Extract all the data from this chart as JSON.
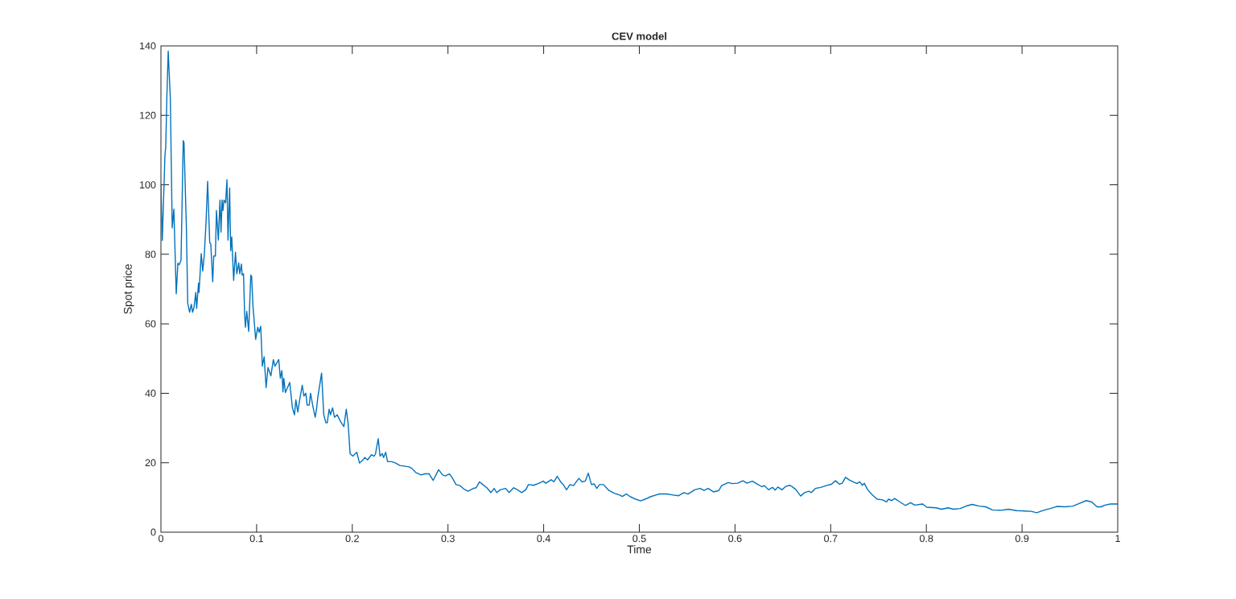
{
  "chart_data": {
    "type": "line",
    "title": "CEV model",
    "xlabel": "Time",
    "ylabel": "Spot price",
    "color": "#0072bd",
    "line_style": "solid",
    "marker": "none",
    "xlim": [
      0,
      1
    ],
    "ylim": [
      0,
      140
    ],
    "xticks": [
      0,
      0.1,
      0.2,
      0.3,
      0.4,
      0.5,
      0.6,
      0.7,
      0.8,
      0.9,
      1
    ],
    "yticks": [
      0,
      20,
      40,
      60,
      80,
      100,
      120,
      140
    ],
    "x": [
      0,
      0.0014,
      0.0042,
      0.005,
      0.0062,
      0.0076,
      0.0098,
      0.0118,
      0.0135,
      0.016,
      0.0177,
      0.0191,
      0.021,
      0.0233,
      0.0241,
      0.0266,
      0.028,
      0.03,
      0.0317,
      0.0331,
      0.0345,
      0.0364,
      0.0373,
      0.0393,
      0.0398,
      0.0421,
      0.0437,
      0.0454,
      0.0471,
      0.0488,
      0.051,
      0.0521,
      0.0541,
      0.0552,
      0.0569,
      0.058,
      0.06,
      0.0617,
      0.0628,
      0.0639,
      0.0648,
      0.0659,
      0.0676,
      0.069,
      0.0701,
      0.0718,
      0.0729,
      0.074,
      0.076,
      0.0779,
      0.0793,
      0.0813,
      0.0824,
      0.0841,
      0.0849,
      0.0863,
      0.0875,
      0.0883,
      0.0897,
      0.0917,
      0.0939,
      0.0948,
      0.0962,
      0.099,
      0.1012,
      0.1026,
      0.1043,
      0.106,
      0.1079,
      0.1099,
      0.1119,
      0.1149,
      0.1175,
      0.1191,
      0.1231,
      0.1248,
      0.1264,
      0.1275,
      0.1284,
      0.1301,
      0.1346,
      0.1374,
      0.1396,
      0.141,
      0.143,
      0.1455,
      0.1477,
      0.1494,
      0.1514,
      0.1528,
      0.155,
      0.1564,
      0.1584,
      0.1612,
      0.1626,
      0.164,
      0.1679,
      0.1702,
      0.1724,
      0.1738,
      0.1758,
      0.1772,
      0.1794,
      0.1814,
      0.1842,
      0.1876,
      0.1912,
      0.1937,
      0.1957,
      0.1977,
      0.2005,
      0.2047,
      0.2075,
      0.2117,
      0.213,
      0.2159,
      0.2201,
      0.2229,
      0.2243,
      0.2271,
      0.229,
      0.2313,
      0.2327,
      0.2349,
      0.2369,
      0.2411,
      0.2453,
      0.2495,
      0.2593,
      0.2621,
      0.2663,
      0.2719,
      0.2761,
      0.2803,
      0.2845,
      0.2902,
      0.2944,
      0.2972,
      0.3014,
      0.3042,
      0.3084,
      0.3126,
      0.3168,
      0.321,
      0.3266,
      0.3294,
      0.333,
      0.3364,
      0.3406,
      0.3448,
      0.3482,
      0.351,
      0.3546,
      0.3602,
      0.3639,
      0.3687,
      0.3715,
      0.3771,
      0.3813,
      0.3841,
      0.3897,
      0.3953,
      0.3995,
      0.4023,
      0.4079,
      0.4107,
      0.4142,
      0.4177,
      0.4205,
      0.4239,
      0.4275,
      0.4312,
      0.4368,
      0.4401,
      0.4435,
      0.4466,
      0.45,
      0.4528,
      0.4556,
      0.4584,
      0.4626,
      0.4682,
      0.4738,
      0.4794,
      0.4822,
      0.4864,
      0.4906,
      0.4962,
      0.5013,
      0.5061,
      0.5116,
      0.5172,
      0.5214,
      0.5284,
      0.5355,
      0.541,
      0.5467,
      0.5509,
      0.5579,
      0.5635,
      0.5677,
      0.5719,
      0.5775,
      0.5831,
      0.586,
      0.5929,
      0.5971,
      0.6028,
      0.6083,
      0.6125,
      0.6182,
      0.6224,
      0.628,
      0.6308,
      0.635,
      0.6392,
      0.642,
      0.6448,
      0.649,
      0.6532,
      0.6574,
      0.6602,
      0.6638,
      0.6686,
      0.6728,
      0.677,
      0.6798,
      0.684,
      0.6897,
      0.6953,
      0.7008,
      0.7051,
      0.7093,
      0.7121,
      0.7155,
      0.7191,
      0.7233,
      0.7275,
      0.7303,
      0.7331,
      0.7351,
      0.7387,
      0.7429,
      0.7485,
      0.7542,
      0.7584,
      0.7603,
      0.7639,
      0.7668,
      0.7724,
      0.778,
      0.7836,
      0.7878,
      0.7962,
      0.8004,
      0.8102,
      0.8158,
      0.8228,
      0.8284,
      0.8354,
      0.8425,
      0.848,
      0.8551,
      0.8621,
      0.8691,
      0.8775,
      0.8859,
      0.8943,
      0.9027,
      0.9097,
      0.9153,
      0.9224,
      0.9294,
      0.9363,
      0.9448,
      0.9532,
      0.9602,
      0.9672,
      0.9728,
      0.9784,
      0.9826,
      0.9868,
      0.9924,
      1
    ],
    "values": [
      100,
      84,
      108.5,
      110.8,
      125.4,
      138.5,
      125,
      87.6,
      93,
      68.6,
      77.4,
      77,
      78.3,
      112.7,
      112.2,
      87.6,
      65.9,
      63.3,
      65.6,
      63.3,
      64.7,
      69,
      64.4,
      71.7,
      69,
      80.2,
      75.2,
      80.2,
      89.1,
      101,
      83.3,
      83,
      72.1,
      79.5,
      79.5,
      92.6,
      84.1,
      95.6,
      86.4,
      95.6,
      92.6,
      95.6,
      94.8,
      101.5,
      84.1,
      99.1,
      81,
      85,
      72.5,
      80.6,
      74.4,
      77.5,
      74.4,
      77.2,
      74,
      74.4,
      62.4,
      59,
      63.6,
      57.8,
      74,
      73.6,
      65.1,
      55.5,
      59,
      57.5,
      59.3,
      47.8,
      50.5,
      41.6,
      47.4,
      45,
      49.7,
      47.8,
      49.7,
      44.3,
      46.5,
      40.4,
      44.3,
      40.2,
      43.1,
      35.8,
      33.8,
      38.1,
      34.6,
      38.9,
      42.3,
      39.2,
      40,
      36.6,
      36.6,
      40,
      36.8,
      33.1,
      35.4,
      38.9,
      45.8,
      33.8,
      31.5,
      31.5,
      35.4,
      33.8,
      35.8,
      33.1,
      33.8,
      31.9,
      30.4,
      35.4,
      31.1,
      22.6,
      21.9,
      23,
      19.9,
      21,
      21.5,
      20.8,
      22.3,
      21.9,
      22.6,
      26.9,
      21.9,
      22.6,
      21.5,
      23,
      20.3,
      20.3,
      19.9,
      19.2,
      18.8,
      18.4,
      17.2,
      16.5,
      16.8,
      16.8,
      14.9,
      18,
      16.5,
      16.2,
      16.8,
      15.8,
      13.7,
      13.4,
      12.4,
      11.8,
      12.6,
      12.8,
      14.5,
      13.7,
      12.8,
      11.4,
      12.6,
      11.4,
      12.2,
      12.6,
      11.4,
      12.8,
      12.4,
      11.4,
      12.2,
      13.7,
      13.5,
      14.1,
      14.7,
      14.1,
      15.1,
      14.5,
      16.1,
      14.5,
      13.7,
      12.2,
      13.7,
      13.4,
      15.5,
      14.5,
      14.7,
      17,
      13.7,
      13.9,
      12.6,
      13.7,
      13.7,
      12,
      11.2,
      10.7,
      10.3,
      11,
      10.2,
      9.5,
      9,
      9.5,
      10.2,
      10.7,
      11,
      11,
      10.7,
      10.5,
      11.4,
      11,
      12.2,
      12.6,
      12,
      12.6,
      11.6,
      12,
      13.4,
      14.3,
      14,
      14.1,
      14.8,
      14.1,
      14.7,
      14,
      13.1,
      13.4,
      12.2,
      12.9,
      12.1,
      13,
      12.2,
      13.2,
      13.5,
      13,
      12.2,
      10.4,
      11.4,
      11.8,
      11.4,
      12.6,
      12.9,
      13.4,
      13.8,
      14.8,
      13.8,
      14.1,
      15.8,
      15.1,
      14.5,
      14,
      14.5,
      13.5,
      14.1,
      12.2,
      10.9,
      9.5,
      9.3,
      8.7,
      9.5,
      9.1,
      9.7,
      8.7,
      7.7,
      8.5,
      7.8,
      8.1,
      7.2,
      7,
      6.6,
      7,
      6.6,
      6.8,
      7.6,
      8,
      7.5,
      7.3,
      6.4,
      6.3,
      6.6,
      6.2,
      6.1,
      6,
      5.6,
      6.3,
      6.8,
      7.4,
      7.3,
      7.5,
      8.3,
      9.1,
      8.7,
      7.3,
      7.3,
      7.8,
      8.1,
      8.1
    ]
  }
}
